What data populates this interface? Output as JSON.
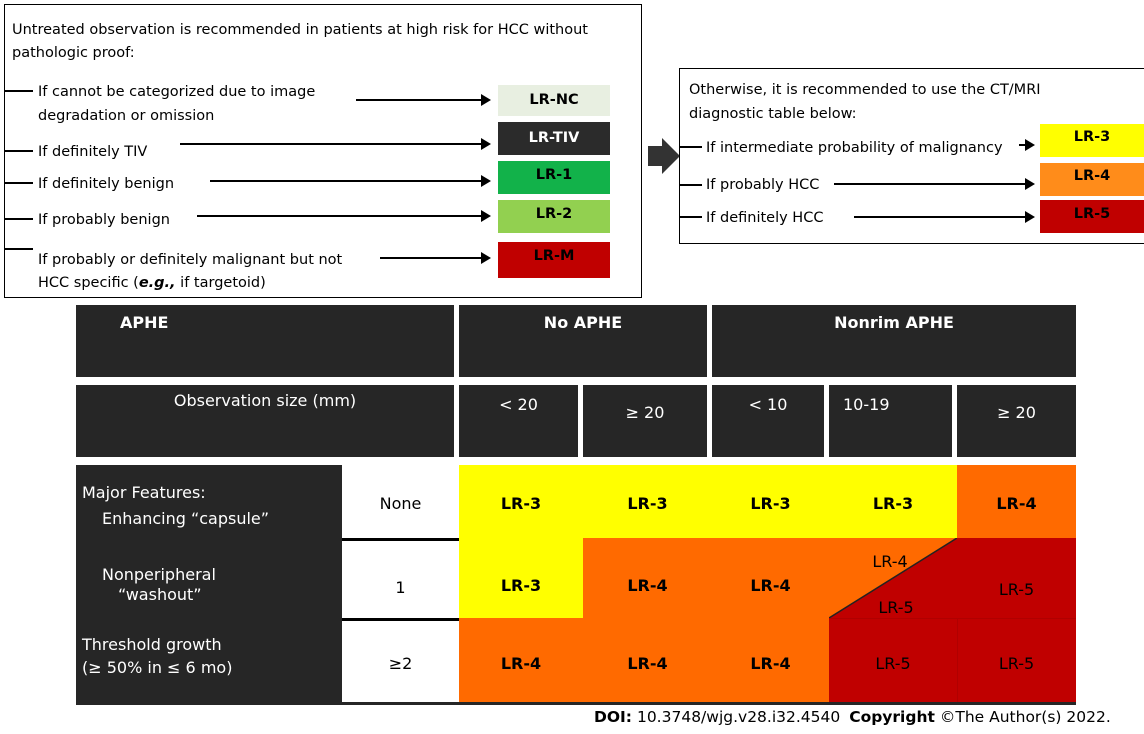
{
  "untreated": {
    "heading": "Untreated observation is recommended in patients at high risk for HCC without",
    "heading2": "pathologic proof:",
    "items": [
      {
        "line1": "If cannot be categorized due to image",
        "line2": "degradation or omission",
        "badge": "LR-NC",
        "color": "#e8efe1",
        "text_color": "#000000"
      },
      {
        "line1": "If definitely TIV",
        "badge": "LR-TIV",
        "color": "#2b2b2b",
        "text_color": "#ffffff"
      },
      {
        "line1": "If definitely benign",
        "badge": "LR-1",
        "color": "#12b24a",
        "text_color": "#000000"
      },
      {
        "line1": "If probably benign",
        "badge": "LR-2",
        "color": "#92d050",
        "text_color": "#000000"
      },
      {
        "line1": "If probably or definitely malignant but not",
        "line2_pre": "HCC specific (",
        "line2_em": "e.g.,",
        "line2_post": " if targetoid)",
        "badge": "LR-M",
        "color": "#c00000",
        "text_color": "#000000"
      }
    ]
  },
  "otherwise": {
    "heading": "Otherwise, it is recommended to use the CT/MRI",
    "heading2": "diagnostic table below:",
    "items": [
      {
        "label": "If intermediate probability of malignancy",
        "badge": "LR-3",
        "color": "#ffff00"
      },
      {
        "label": "If probably HCC",
        "badge": "LR-4",
        "color": "#ff8c1a"
      },
      {
        "label": "If definitely HCC",
        "badge": "LR-5",
        "color": "#c00000"
      }
    ]
  },
  "table": {
    "aphe": "APHE",
    "no_aphe": "No APHE",
    "nonrim_aphe": "Nonrim APHE",
    "obs_size": "Observation size (mm)",
    "sizes": [
      "< 20",
      "≥ 20",
      "< 10",
      "10-19",
      "≥ 20"
    ],
    "major_features": "Major Features:",
    "feature1": "Enhancing “capsule”",
    "feature2a": "Nonperipheral",
    "feature2b": "“washout”",
    "feature3a": "Threshold growth",
    "feature3b": "(≥ 50% in ≤ 6 mo)",
    "counts": [
      "None",
      "1",
      "≥2"
    ],
    "rows": [
      [
        "LR-3",
        "LR-3",
        "LR-3",
        "LR-3",
        "LR-4"
      ],
      [
        "LR-3",
        "LR-4",
        "LR-4",
        "LR-4",
        "LR-5",
        "LR-5"
      ],
      [
        "LR-4",
        "LR-4",
        "LR-4",
        "LR-5",
        "LR-5"
      ]
    ],
    "colors": {
      "yellow": "#ffff00",
      "orange": "#ff6a00",
      "red": "#c00000"
    }
  },
  "footer": {
    "doi_label": "DOI:",
    "doi_value": "10.3748/wjg.v28.i32.4540",
    "copyright_label": "Copyright",
    "copyright_value": "©The Author(s) 2022."
  }
}
